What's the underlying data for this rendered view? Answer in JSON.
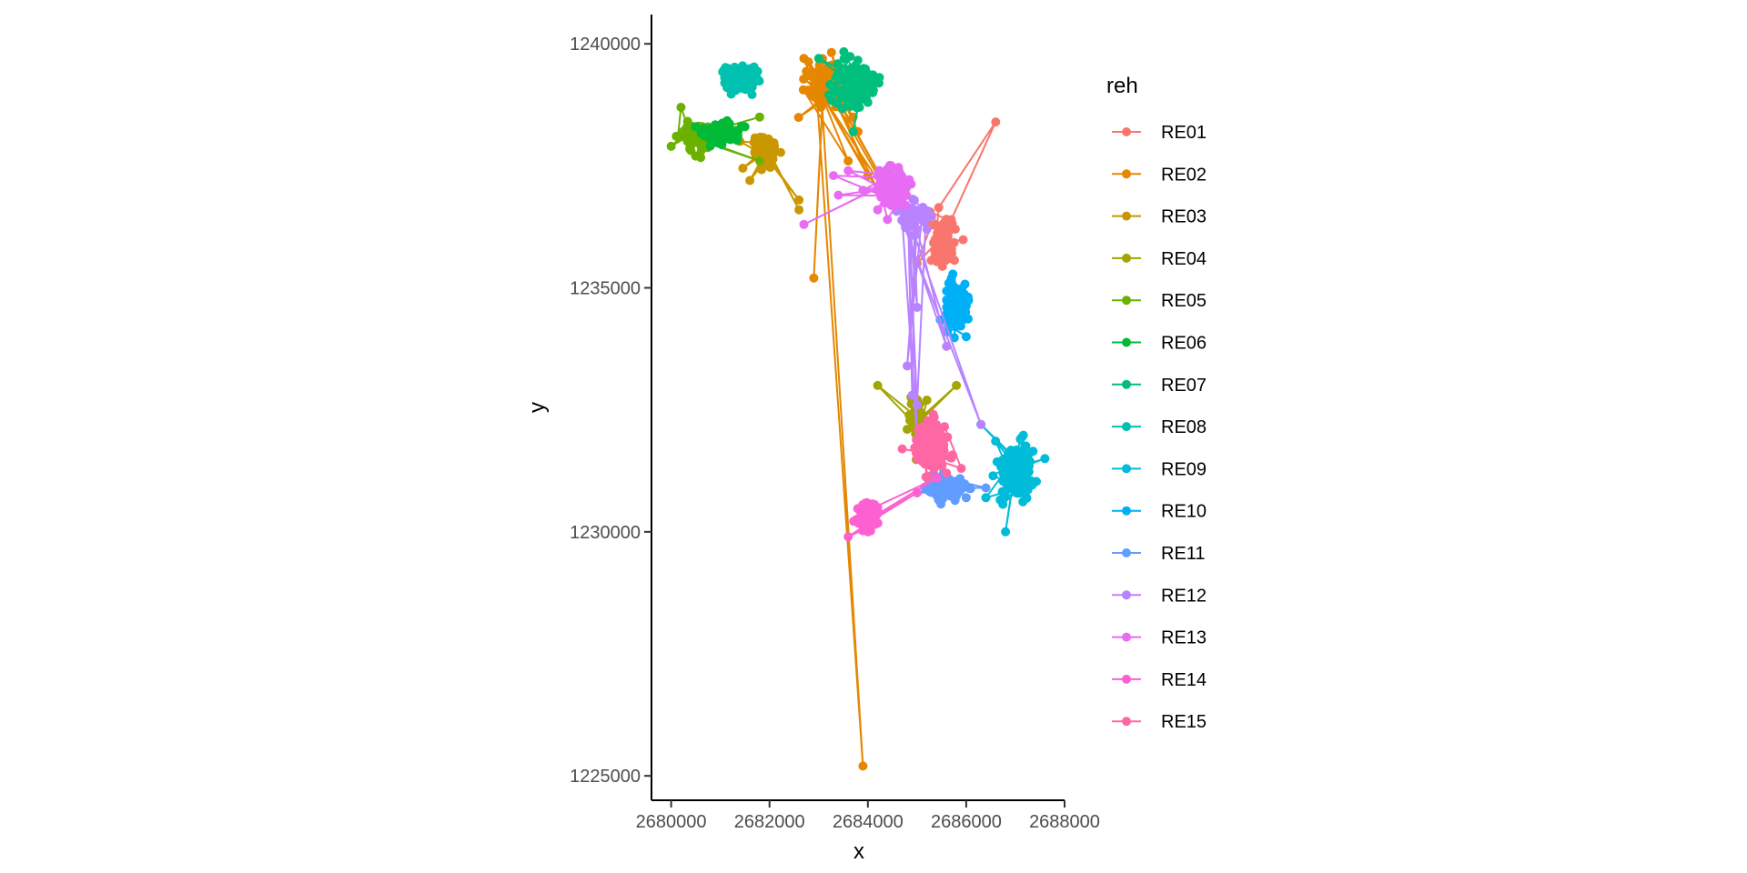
{
  "chart_data": {
    "type": "line",
    "xlabel": "x",
    "ylabel": "y",
    "xlim": [
      2679600,
      2688000
    ],
    "ylim": [
      1224500,
      1240600
    ],
    "x_ticks": [
      2680000,
      2682000,
      2684000,
      2686000,
      2688000
    ],
    "x_tick_labels": [
      "2680000",
      "2682000",
      "2684000",
      "2686000",
      "2688000"
    ],
    "y_ticks": [
      1225000,
      1230000,
      1235000,
      1240000
    ],
    "y_tick_labels": [
      "1225000",
      "1230000",
      "1235000",
      "1240000"
    ],
    "grid": false,
    "legend": {
      "title": "reh",
      "placement": "right"
    },
    "markers": true,
    "series": [
      {
        "name": "RE01",
        "color": "#F8766D",
        "cluster": {
          "cx": 2685500,
          "cy": 1235900,
          "rx": 250,
          "ry": 500,
          "n": 130
        },
        "points": [
          [
            2685000,
            1235500
          ],
          [
            2685600,
            1236200
          ],
          [
            2686600,
            1238400
          ],
          [
            2685400,
            1235800
          ],
          [
            2685700,
            1235600
          ]
        ]
      },
      {
        "name": "RE02",
        "color": "#E58700",
        "cluster": {
          "cx": 2683200,
          "cy": 1239200,
          "rx": 500,
          "ry": 450,
          "n": 110
        },
        "points": [
          [
            2682700,
            1239700
          ],
          [
            2683500,
            1239000
          ],
          [
            2683800,
            1238200
          ],
          [
            2684000,
            1237300
          ],
          [
            2684600,
            1236600
          ],
          [
            2684800,
            1236300
          ],
          [
            2683900,
            1225200
          ],
          [
            2683600,
            1237600
          ],
          [
            2683500,
            1238800
          ],
          [
            2682900,
            1235200
          ],
          [
            2683700,
            1238500
          ],
          [
            2684200,
            1237000
          ]
        ]
      },
      {
        "name": "RE03",
        "color": "#C99800",
        "cluster": {
          "cx": 2681900,
          "cy": 1237800,
          "rx": 230,
          "ry": 320,
          "n": 90
        },
        "points": [
          [
            2681400,
            1238000
          ],
          [
            2682100,
            1237900
          ],
          [
            2682600,
            1236800
          ],
          [
            2682600,
            1236600
          ],
          [
            2681600,
            1237200
          ],
          [
            2681800,
            1237700
          ]
        ]
      },
      {
        "name": "RE04",
        "color": "#A3A500",
        "cluster": {
          "cx": 2685000,
          "cy": 1232300,
          "rx": 150,
          "ry": 450,
          "n": 80
        },
        "points": [
          [
            2684200,
            1233000
          ],
          [
            2685000,
            1232400
          ],
          [
            2685800,
            1233000
          ],
          [
            2684800,
            1232100
          ],
          [
            2685200,
            1232700
          ]
        ]
      },
      {
        "name": "RE05",
        "color": "#6BB100",
        "cluster": {
          "cx": 2680600,
          "cy": 1238100,
          "rx": 450,
          "ry": 300,
          "n": 90
        },
        "points": [
          [
            2680200,
            1238700
          ],
          [
            2680600,
            1238200
          ],
          [
            2681800,
            1238500
          ],
          [
            2681800,
            1237600
          ],
          [
            2680000,
            1237900
          ],
          [
            2680500,
            1237700
          ],
          [
            2681300,
            1238100
          ]
        ]
      },
      {
        "name": "RE06",
        "color": "#00BA38",
        "cluster": {
          "cx": 2681000,
          "cy": 1238200,
          "rx": 350,
          "ry": 250,
          "n": 100
        },
        "points": [
          [
            2680500,
            1238300
          ],
          [
            2681200,
            1238100
          ],
          [
            2681500,
            1238300
          ],
          [
            2681000,
            1238000
          ]
        ]
      },
      {
        "name": "RE07",
        "color": "#00BF7D",
        "cluster": {
          "cx": 2683700,
          "cy": 1239200,
          "rx": 450,
          "ry": 500,
          "n": 120
        },
        "points": [
          [
            2683000,
            1239700
          ],
          [
            2683700,
            1239200
          ],
          [
            2684000,
            1238800
          ],
          [
            2683700,
            1238200
          ],
          [
            2684100,
            1239000
          ]
        ]
      },
      {
        "name": "RE08",
        "color": "#00C0AF",
        "cluster": {
          "cx": 2681400,
          "cy": 1239300,
          "rx": 350,
          "ry": 280,
          "n": 110
        },
        "points": []
      },
      {
        "name": "RE09",
        "color": "#00BCD8",
        "cluster": {
          "cx": 2687000,
          "cy": 1231200,
          "rx": 450,
          "ry": 600,
          "n": 130
        },
        "points": [
          [
            2686300,
            1232200
          ],
          [
            2687000,
            1231300
          ],
          [
            2686800,
            1230000
          ],
          [
            2687600,
            1231500
          ],
          [
            2686400,
            1230700
          ],
          [
            2687200,
            1231000
          ]
        ]
      },
      {
        "name": "RE10",
        "color": "#00B0F6",
        "cluster": {
          "cx": 2685800,
          "cy": 1234600,
          "rx": 250,
          "ry": 500,
          "n": 110
        },
        "points": [
          [
            2685700,
            1235200
          ],
          [
            2685600,
            1234600
          ],
          [
            2686000,
            1234000
          ],
          [
            2685800,
            1234800
          ]
        ]
      },
      {
        "name": "RE11",
        "color": "#619CFF",
        "cluster": {
          "cx": 2685600,
          "cy": 1230900,
          "rx": 400,
          "ry": 250,
          "n": 110
        },
        "points": [
          [
            2685000,
            1230800
          ],
          [
            2685900,
            1231000
          ],
          [
            2686400,
            1230900
          ],
          [
            2685500,
            1231400
          ],
          [
            2686000,
            1230700
          ]
        ]
      },
      {
        "name": "RE12",
        "color": "#B983FF",
        "cluster": {
          "cx": 2684900,
          "cy": 1236500,
          "rx": 300,
          "ry": 300,
          "n": 60
        },
        "points": [
          [
            2684700,
            1236600
          ],
          [
            2685000,
            1234600
          ],
          [
            2684900,
            1232800
          ],
          [
            2685000,
            1231900
          ],
          [
            2684800,
            1233400
          ],
          [
            2685200,
            1236200
          ],
          [
            2686300,
            1232200
          ],
          [
            2685600,
            1233800
          ],
          [
            2685000,
            1232600
          ]
        ]
      },
      {
        "name": "RE13",
        "color": "#E76BF3",
        "cluster": {
          "cx": 2684500,
          "cy": 1237100,
          "rx": 320,
          "ry": 420,
          "n": 130
        },
        "points": [
          [
            2682700,
            1236300
          ],
          [
            2683400,
            1236900
          ],
          [
            2683900,
            1237000
          ],
          [
            2684400,
            1236400
          ],
          [
            2683600,
            1237400
          ],
          [
            2684200,
            1236600
          ],
          [
            2683300,
            1237300
          ]
        ]
      },
      {
        "name": "RE14",
        "color": "#FD61D1",
        "cluster": {
          "cx": 2684000,
          "cy": 1230300,
          "rx": 250,
          "ry": 300,
          "n": 100
        },
        "points": [
          [
            2683600,
            1229900
          ],
          [
            2684200,
            1230500
          ],
          [
            2685000,
            1230800
          ],
          [
            2685400,
            1231100
          ],
          [
            2684000,
            1230000
          ]
        ]
      },
      {
        "name": "RE15",
        "color": "#FF67A4",
        "cluster": {
          "cx": 2685300,
          "cy": 1231800,
          "rx": 320,
          "ry": 500,
          "n": 150
        },
        "points": [
          [
            2685000,
            1231500
          ],
          [
            2685600,
            1231200
          ],
          [
            2685900,
            1231300
          ],
          [
            2684700,
            1231700
          ],
          [
            2685300,
            1232100
          ]
        ]
      }
    ]
  }
}
